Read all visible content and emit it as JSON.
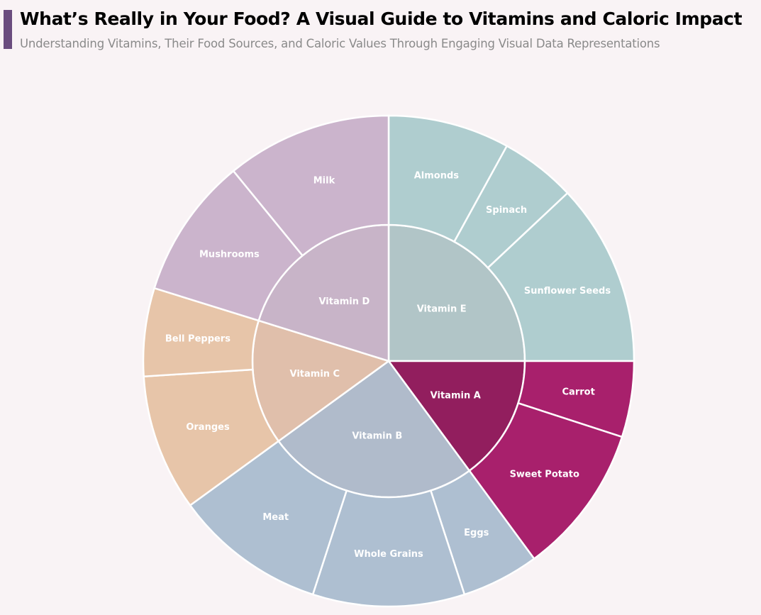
{
  "header": {
    "title": "What’s Really in Your Food? A Visual Guide to Vitamins and Caloric Impact",
    "subtitle": "Understanding Vitamins, Their Food Sources, and Caloric Values Through Engaging Visual Data Representations",
    "accent_color": "#6a4c7e"
  },
  "chart_data": {
    "type": "sunburst",
    "title": "What’s Really in Your Food? A Visual Guide to Vitamins and Caloric Impact",
    "subtitle": "Understanding Vitamins, Their Food Sources, and Caloric Values Through Engaging Visual Data Representations",
    "value_unit": "estimated share of total (%)",
    "start_angle_deg": 0,
    "direction": "clockwise",
    "center": [
      548,
      509
    ],
    "inner_radius": 192,
    "outer_radius": 346,
    "groups": [
      {
        "name": "Vitamin E",
        "inner_color": "#b1c5c7",
        "outer_color": "#afcdcf",
        "children": [
          {
            "name": "Almonds",
            "value": 8.0
          },
          {
            "name": "Spinach",
            "value": 5.0
          },
          {
            "name": "Sunflower Seeds",
            "value": 12.0
          }
        ]
      },
      {
        "name": "Vitamin A",
        "inner_color": "#921e5e",
        "outer_color": "#a8206c",
        "children": [
          {
            "name": "Carrot",
            "value": 5.0
          },
          {
            "name": "Sweet Potato",
            "value": 9.9
          }
        ]
      },
      {
        "name": "Vitamin B",
        "inner_color": "#b0bbcb",
        "outer_color": "#aebfd1",
        "children": [
          {
            "name": "Eggs",
            "value": 5.1
          },
          {
            "name": "Whole Grains",
            "value": 10.0
          },
          {
            "name": "Meat",
            "value": 10.0
          }
        ]
      },
      {
        "name": "Vitamin C",
        "inner_color": "#e0bfab",
        "outer_color": "#e7c5a9",
        "children": [
          {
            "name": "Oranges",
            "value": 9.0
          },
          {
            "name": "Bell Peppers",
            "value": 5.8
          }
        ]
      },
      {
        "name": "Vitamin D",
        "inner_color": "#c8b4c8",
        "outer_color": "#cbb4cc",
        "children": [
          {
            "name": "Mushrooms",
            "value": 9.3
          },
          {
            "name": "Milk",
            "value": 10.9
          }
        ]
      }
    ],
    "legend": "none"
  }
}
